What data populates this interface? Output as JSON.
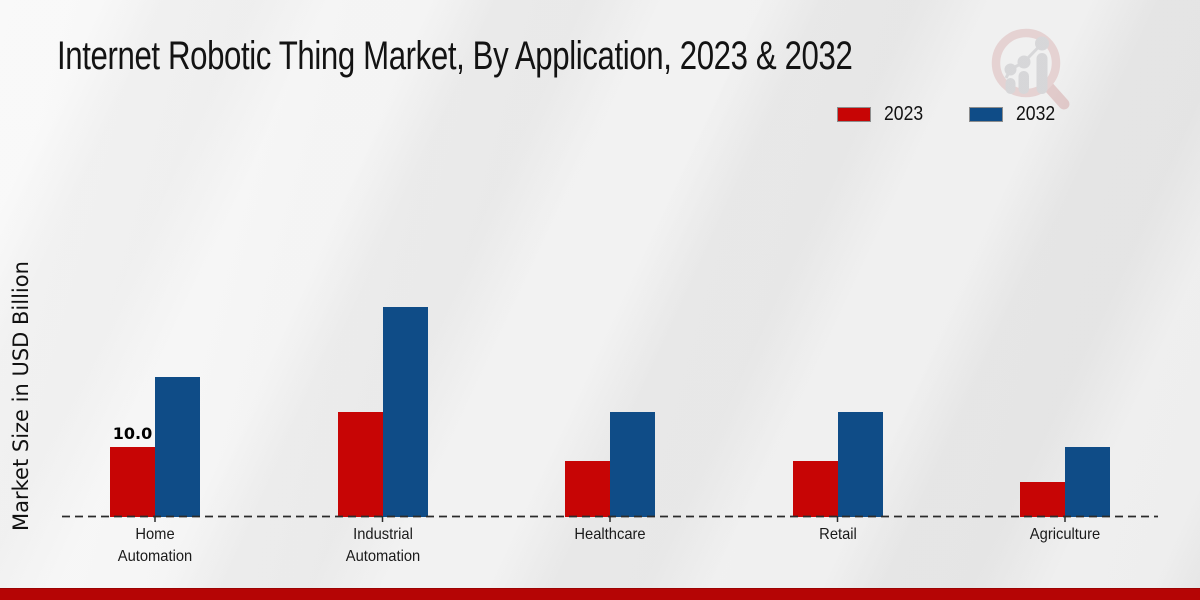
{
  "title": "Internet Robotic Thing Market, By Application, 2023 & 2032",
  "y_axis_label": "Market Size in USD Billion",
  "legend": {
    "position": "top-right",
    "items": [
      {
        "label": "2023",
        "color": "#c70505"
      },
      {
        "label": "2032",
        "color": "#0f4c87"
      }
    ]
  },
  "watermark_icon": "market-research-magnifier-chart-logo",
  "colors": {
    "series_2023_red": "#c70505",
    "series_2032_blue": "#0f4c87",
    "footer_accent_bar": "#b50505",
    "background": "#ececec",
    "baseline": "#2b2b2b"
  },
  "chart_data": {
    "type": "bar",
    "title": "Internet Robotic Thing Market, By Application, 2023 & 2032",
    "xlabel": "",
    "ylabel": "Market Size in USD Billion",
    "unit": "USD Billion",
    "categories": [
      "Home Automation",
      "Industrial Automation",
      "Healthcare",
      "Retail",
      "Agriculture"
    ],
    "series": [
      {
        "name": "2023",
        "color": "#c70505",
        "values": [
          10.0,
          15.0,
          8.0,
          8.0,
          5.0
        ]
      },
      {
        "name": "2032",
        "color": "#0f4c87",
        "values": [
          20.0,
          30.0,
          15.0,
          15.0,
          10.0
        ]
      }
    ],
    "data_labels": [
      {
        "series": "2023",
        "category": "Home Automation",
        "text": "10.0"
      }
    ],
    "baseline": {
      "style": "dashed",
      "color": "#2b2b2b"
    },
    "grid": false,
    "y_axis_ticks_visible": false,
    "legend_position": "top-right"
  }
}
